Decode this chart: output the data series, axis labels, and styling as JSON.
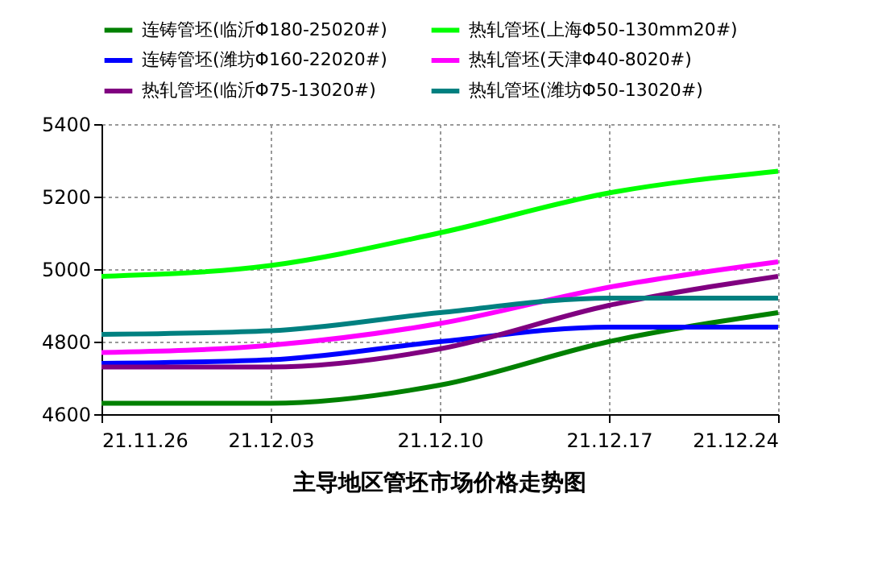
{
  "chart_data": {
    "type": "line",
    "title": "主导地区管坯市场价格走势图",
    "categories": [
      "21.11.26",
      "21.12.03",
      "21.12.10",
      "21.12.17",
      "21.12.24"
    ],
    "series": [
      {
        "name": "连铸管坯(临沂Φ180-25020#)",
        "color": "#008000",
        "values": [
          4630,
          4630,
          4680,
          4800,
          4880
        ]
      },
      {
        "name": "热轧管坯(上海Φ50-130mm20#)",
        "color": "#00ff00",
        "values": [
          4980,
          5010,
          5100,
          5210,
          5270
        ]
      },
      {
        "name": "连铸管坯(潍坊Φ160-22020#)",
        "color": "#0000ff",
        "values": [
          4740,
          4750,
          4800,
          4840,
          4840
        ]
      },
      {
        "name": "热轧管坯(天津Φ40-8020#)",
        "color": "#ff00ff",
        "values": [
          4770,
          4790,
          4850,
          4950,
          5020
        ]
      },
      {
        "name": "热轧管坯(临沂Φ75-13020#)",
        "color": "#800080",
        "values": [
          4730,
          4730,
          4780,
          4900,
          4980
        ]
      },
      {
        "name": "热轧管坯(潍坊Φ50-13020#)",
        "color": "#008080",
        "values": [
          4820,
          4830,
          4880,
          4920,
          4920
        ]
      }
    ],
    "ylim": [
      4600,
      5400
    ],
    "yticks": [
      4600,
      4800,
      5000,
      5200,
      5400
    ],
    "grid": true,
    "legend": "top",
    "marker": "none",
    "line_style": "solid"
  }
}
